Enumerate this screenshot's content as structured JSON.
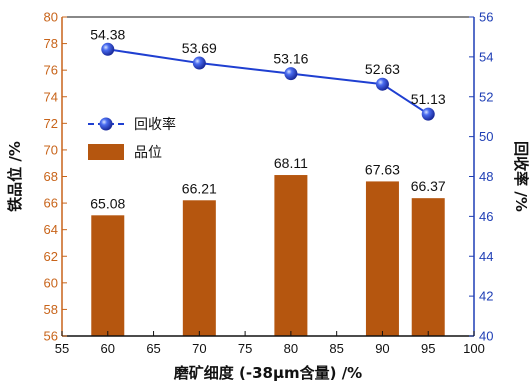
{
  "chart_data": {
    "type": "bar",
    "title": "",
    "xlabel": "磨矿细度 (-38μm含量) /%",
    "ylabel": "铁品位 /%",
    "y2label": "回收率 /%",
    "xlim": [
      55,
      100
    ],
    "xticks": [
      55,
      60,
      65,
      70,
      75,
      80,
      85,
      90,
      95,
      100
    ],
    "ylim": [
      56,
      80
    ],
    "yticks": [
      56,
      58,
      60,
      62,
      64,
      66,
      68,
      70,
      72,
      74,
      76,
      78,
      80
    ],
    "y2lim": [
      40,
      56
    ],
    "y2ticks": [
      40,
      42,
      44,
      46,
      48,
      50,
      52,
      54,
      56
    ],
    "x": [
      60,
      70,
      80,
      90,
      95
    ],
    "series": [
      {
        "name": "品位",
        "type": "bar",
        "axis": "left",
        "values": [
          65.08,
          66.21,
          68.11,
          67.63,
          66.37
        ],
        "labels": [
          "65.08",
          "66.21",
          "68.11",
          "67.63",
          "66.37"
        ],
        "color": "#b5560f"
      },
      {
        "name": "回收率",
        "type": "line",
        "axis": "right",
        "values": [
          54.38,
          53.69,
          53.16,
          52.63,
          51.13
        ],
        "labels": [
          "54.38",
          "53.69",
          "53.16",
          "52.63",
          "51.13"
        ],
        "color": "#1f3fd1"
      }
    ],
    "legend_position": "left",
    "grid": false,
    "colors": {
      "left_axis": "#c8641a",
      "right_axis": "#1f3fb5"
    }
  }
}
